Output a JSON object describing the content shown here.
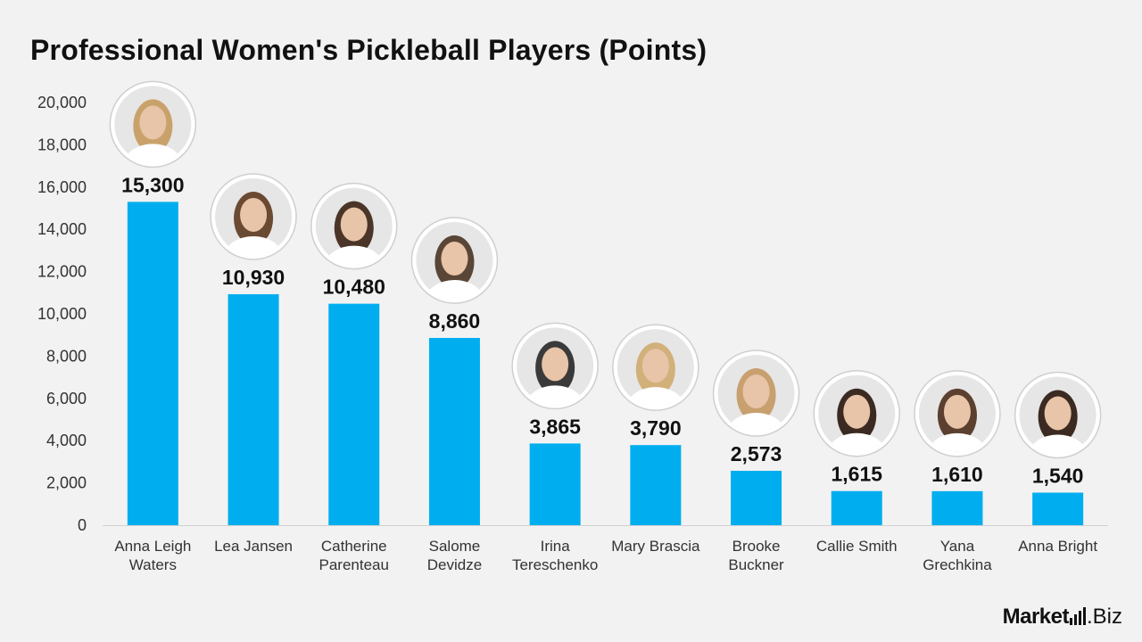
{
  "chart_data": {
    "type": "bar",
    "title": "Professional Women's Pickleball Players (Points)",
    "categories": [
      [
        "Anna Leigh",
        "Waters"
      ],
      [
        "Lea Jansen"
      ],
      [
        "Catherine",
        "Parenteau"
      ],
      [
        "Salome",
        "Devidze"
      ],
      [
        "Irina",
        "Tereschenko"
      ],
      [
        "Mary Brascia"
      ],
      [
        "Brooke",
        "Buckner"
      ],
      [
        "Callie Smith"
      ],
      [
        "Yana",
        "Grechkina"
      ],
      [
        "Anna Bright"
      ]
    ],
    "values": [
      15300,
      10930,
      10480,
      8860,
      3865,
      3790,
      2573,
      1615,
      1610,
      1540
    ],
    "value_labels": [
      "15,300",
      "10,930",
      "10,480",
      "8,860",
      "3,865",
      "3,790",
      "2,573",
      "1,615",
      "1,610",
      "1,540"
    ],
    "ylim": [
      0,
      20000
    ],
    "yticks": [
      0,
      2000,
      4000,
      6000,
      8000,
      10000,
      12000,
      14000,
      16000,
      18000,
      20000
    ],
    "ytick_labels": [
      "0",
      "2,000",
      "4,000",
      "6,000",
      "8,000",
      "10,000",
      "12,000",
      "14,000",
      "16,000",
      "18,000",
      "20,000"
    ],
    "xlabel": "",
    "ylabel": "",
    "grid": false,
    "bar_color": "#00aeef",
    "player_avatars": true
  },
  "brand": {
    "name_first": "Market",
    "name_second": ".Biz"
  }
}
